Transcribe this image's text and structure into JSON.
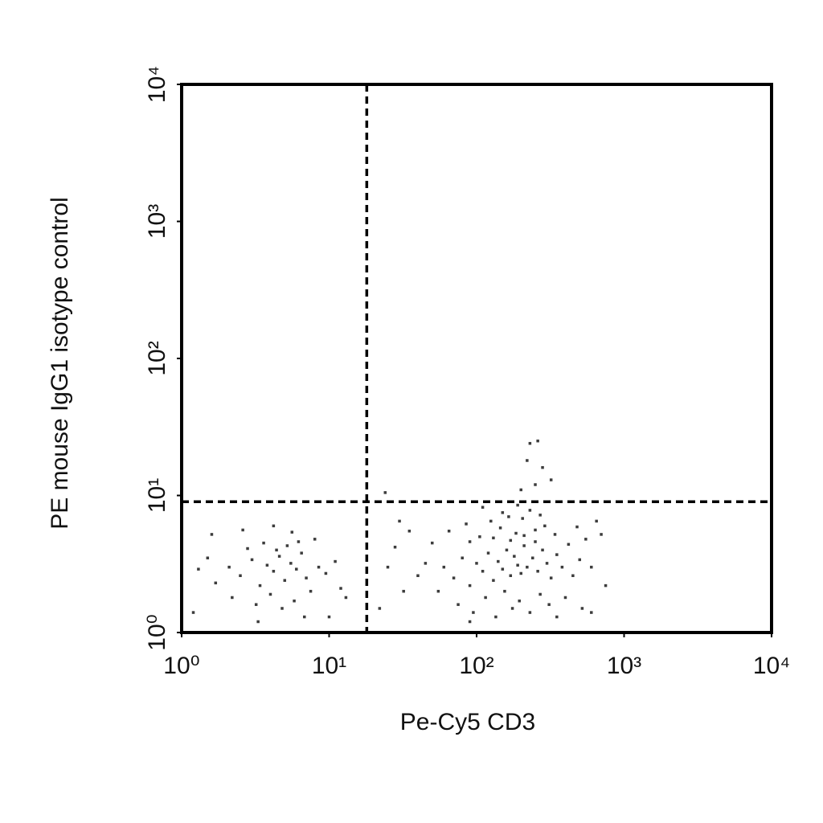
{
  "chart_data": {
    "type": "scatter",
    "x_label": "Pe-Cy5 CD3",
    "y_label": "PE mouse IgG1 isotype control",
    "log_x": true,
    "log_y": true,
    "xlim": [
      1,
      10000
    ],
    "ylim": [
      1,
      10000
    ],
    "xticks": [
      {
        "value": 1,
        "label": "10⁰"
      },
      {
        "value": 10,
        "label": "10¹"
      },
      {
        "value": 100,
        "label": "10²"
      },
      {
        "value": 1000,
        "label": "10³"
      },
      {
        "value": 10000,
        "label": "10⁴"
      }
    ],
    "yticks": [
      {
        "value": 1,
        "label": "10⁰"
      },
      {
        "value": 10,
        "label": "10¹"
      },
      {
        "value": 100,
        "label": "10²"
      },
      {
        "value": 1000,
        "label": "10³"
      },
      {
        "value": 10000,
        "label": "10⁴"
      }
    ],
    "vlines": [
      18
    ],
    "hlines": [
      9
    ],
    "color": "#1a1a1a",
    "x": [
      2.1,
      2.5,
      3.0,
      3.4,
      3.8,
      4.2,
      4.6,
      5.0,
      5.5,
      6.0,
      6.5,
      7.0,
      2.8,
      3.6,
      4.4,
      5.2,
      6.2,
      2.2,
      3.2,
      4.0,
      4.8,
      5.8,
      7.5,
      8.5,
      9.5,
      11,
      12,
      1.3,
      1.5,
      1.7,
      1.2,
      1.6,
      2.6,
      4.2,
      5.6,
      8.0,
      10,
      13,
      3.3,
      6.8,
      22,
      25,
      28,
      32,
      35,
      24,
      30,
      60,
      70,
      80,
      90,
      100,
      110,
      120,
      130,
      140,
      150,
      160,
      170,
      180,
      190,
      200,
      210,
      220,
      240,
      260,
      280,
      300,
      320,
      350,
      380,
      420,
      450,
      500,
      550,
      600,
      700,
      750,
      50,
      55,
      65,
      75,
      85,
      95,
      105,
      115,
      125,
      135,
      145,
      155,
      165,
      175,
      185,
      195,
      205,
      230,
      250,
      270,
      290,
      310,
      340,
      400,
      480,
      520,
      45,
      40,
      90,
      130,
      170,
      210,
      250,
      150,
      230,
      110,
      190,
      270,
      650,
      250,
      280,
      230,
      260,
      220,
      320,
      200,
      600,
      90,
      350
    ],
    "values": [
      3.0,
      2.6,
      3.4,
      2.2,
      3.1,
      2.8,
      3.6,
      2.4,
      3.2,
      2.9,
      3.8,
      2.5,
      4.1,
      4.5,
      4.0,
      4.3,
      4.6,
      1.8,
      1.6,
      1.9,
      1.5,
      1.7,
      2.0,
      3.0,
      2.7,
      3.3,
      2.1,
      2.9,
      3.5,
      2.3,
      1.4,
      5.2,
      5.6,
      6.0,
      5.4,
      4.8,
      1.3,
      1.8,
      1.2,
      1.3,
      1.5,
      3.0,
      4.2,
      2.0,
      5.5,
      10.5,
      6.5,
      3.0,
      2.5,
      3.5,
      2.2,
      3.2,
      2.8,
      3.8,
      2.4,
      3.3,
      2.9,
      4.0,
      2.6,
      3.6,
      3.1,
      2.7,
      4.3,
      3.0,
      3.5,
      2.8,
      4.0,
      3.2,
      2.5,
      3.7,
      3.0,
      4.4,
      2.6,
      3.4,
      4.8,
      3.0,
      5.2,
      2.2,
      4.5,
      2.0,
      5.5,
      1.6,
      6.2,
      1.4,
      5.0,
      1.8,
      6.5,
      1.3,
      5.8,
      2.0,
      7.0,
      1.5,
      5.3,
      1.7,
      6.8,
      1.4,
      5.6,
      1.9,
      6.0,
      1.6,
      5.2,
      1.8,
      5.9,
      1.5,
      3.2,
      2.6,
      4.6,
      4.9,
      4.7,
      5.1,
      4.6,
      7.5,
      7.8,
      8.2,
      8.5,
      7.2,
      6.5,
      12,
      16,
      24,
      25,
      18,
      13,
      11,
      1.4,
      1.2,
      1.3
    ]
  }
}
